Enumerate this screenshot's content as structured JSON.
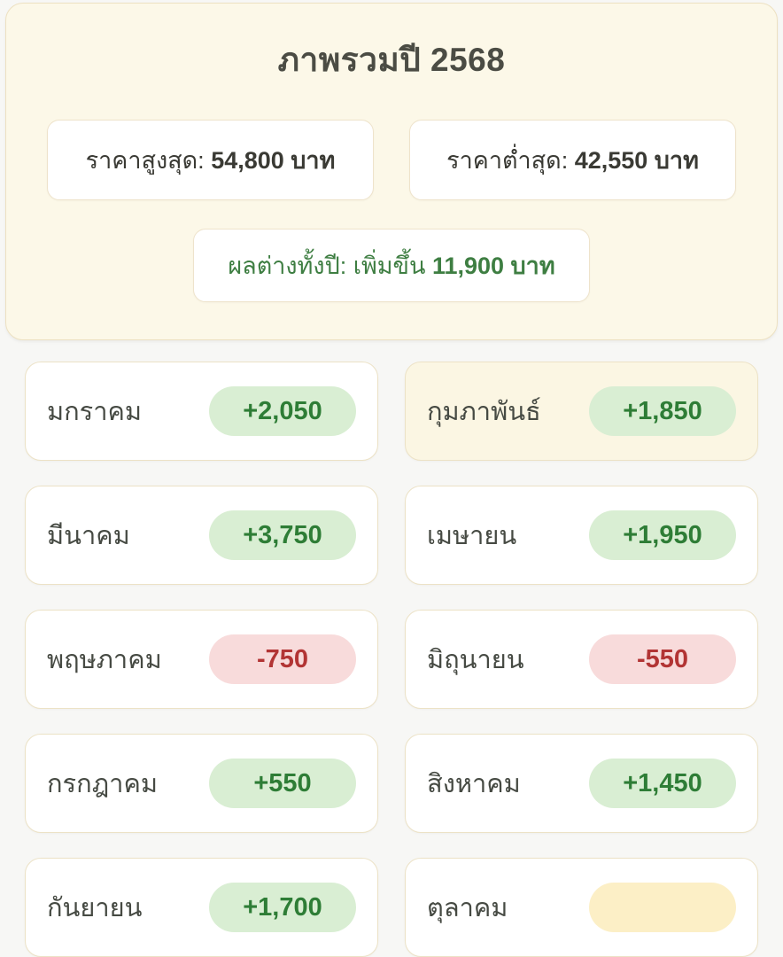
{
  "header": {
    "title": "ภาพรวมปี 2568",
    "stats": [
      {
        "label": "ราคาสูงสุด: ",
        "value": "54,800 บาท"
      },
      {
        "label": "ราคาต่ำสุด: ",
        "value": "42,550 บาท"
      }
    ],
    "summary": {
      "label": "ผลต่างทั้งปี: เพิ่มขึ้น ",
      "value": "11,900 บาท"
    }
  },
  "months": [
    {
      "name": "มกราคม",
      "change": "+2,050",
      "type": "positive",
      "highlight": false
    },
    {
      "name": "กุมภาพันธ์",
      "change": "+1,850",
      "type": "positive",
      "highlight": true
    },
    {
      "name": "มีนาคม",
      "change": "+3,750",
      "type": "positive",
      "highlight": false
    },
    {
      "name": "เมษายน",
      "change": "+1,950",
      "type": "positive",
      "highlight": false
    },
    {
      "name": "พฤษภาคม",
      "change": "-750",
      "type": "negative",
      "highlight": false
    },
    {
      "name": "มิถุนายน",
      "change": "-550",
      "type": "negative",
      "highlight": false
    },
    {
      "name": "กรกฎาคม",
      "change": "+550",
      "type": "positive",
      "highlight": false
    },
    {
      "name": "สิงหาคม",
      "change": "+1,450",
      "type": "positive",
      "highlight": false
    },
    {
      "name": "กันยายน",
      "change": "+1,700",
      "type": "positive",
      "highlight": false
    },
    {
      "name": "ตุลาคม",
      "change": "",
      "type": "pending",
      "highlight": false
    }
  ],
  "colors": {
    "page_background": "#f7f7f5",
    "header_background": "#fcf8e8",
    "card_border": "#ece2c6",
    "positive_badge_bg": "#d9eed3",
    "positive_text": "#2e7d36",
    "negative_badge_bg": "#f8dbdb",
    "negative_text": "#b23434",
    "pending_badge_bg": "#fcefc6",
    "summary_text": "#3e7e42",
    "title_text": "#4b4c44"
  }
}
